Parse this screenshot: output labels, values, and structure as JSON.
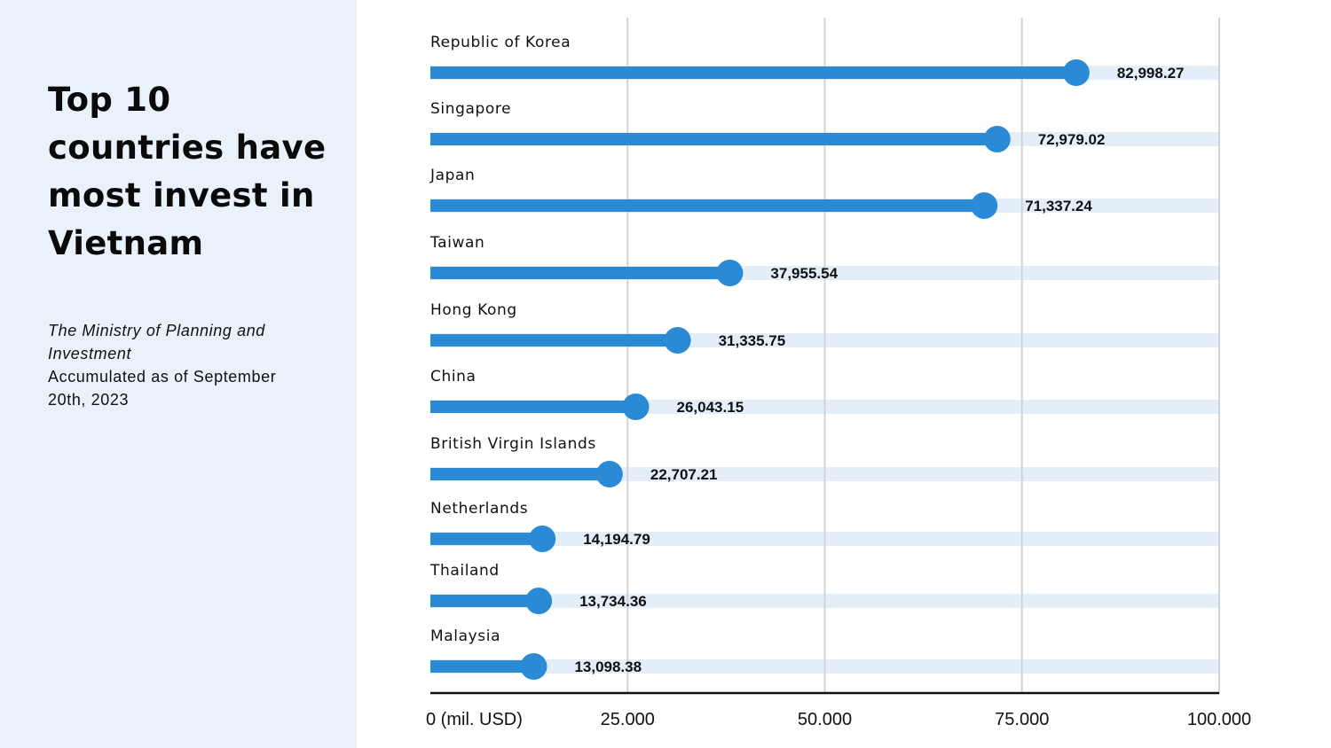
{
  "title": "Top 10 countries have most invest in Vietnam",
  "source": "The Ministry of Planning and Investment",
  "note": "Accumulated as of September 20th, 2023",
  "chart_data": {
    "type": "bar",
    "orientation": "horizontal",
    "title": "Top 10 countries have most invest in Vietnam",
    "xlabel": "(mil. USD)",
    "xlim": [
      0,
      100000
    ],
    "x_ticks": [
      "0 (mil. USD)",
      "25.000",
      "50.000",
      "75.000",
      "100.000"
    ],
    "x_tick_values": [
      0,
      25000,
      50000,
      75000,
      100000
    ],
    "grid": true,
    "categories": [
      "Republic of Korea",
      "Singapore",
      "Japan",
      "Taiwan",
      "Hong Kong",
      "China",
      "British Virgin Islands",
      "Netherlands",
      "Thailand",
      "Malaysia"
    ],
    "values": [
      82998.27,
      72979.02,
      71337.24,
      37955.54,
      31335.75,
      26043.15,
      22707.21,
      14194.79,
      13734.36,
      13098.38
    ],
    "value_labels": [
      "82,998.27",
      "72,979.02",
      "71,337.24",
      "37,955.54",
      "31,335.75",
      "26,043.15",
      "22,707.21",
      "14,194.79",
      "13,734.36",
      "13,098.38"
    ],
    "colors": {
      "bar": "#2b8ad6",
      "track": "#e3eef9",
      "grid": "#cfd3d8"
    }
  }
}
